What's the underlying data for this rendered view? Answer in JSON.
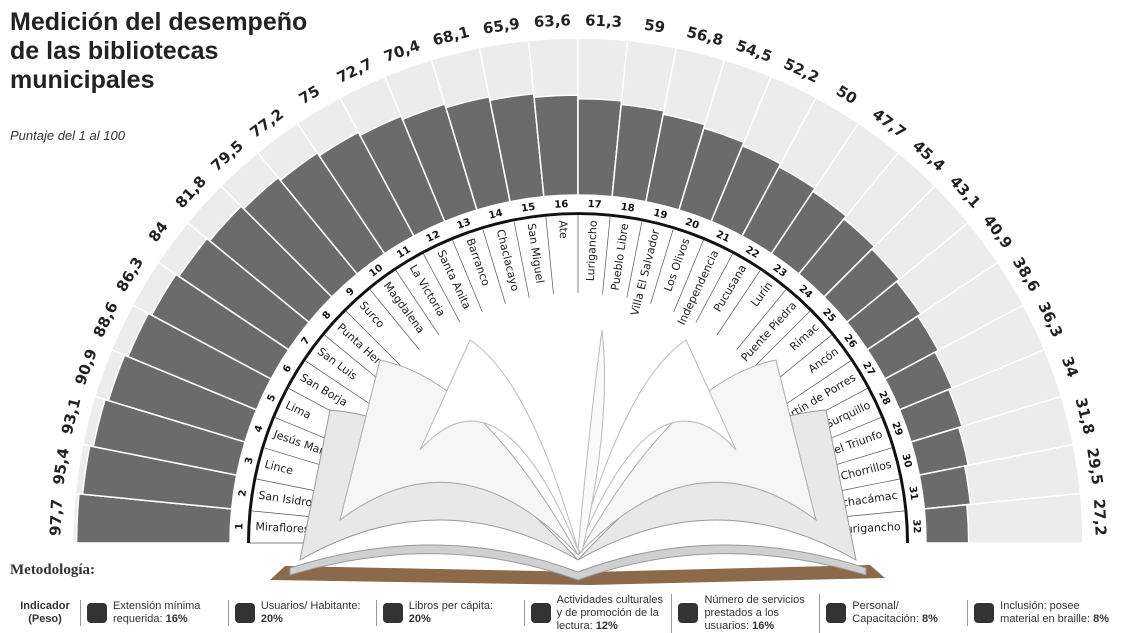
{
  "chart_data": {
    "type": "radial-bar",
    "title": "Medición del desempeño de las bibliotecas municipales",
    "subtitle": "Puntaje del 1 al 100",
    "categories": [
      "Miraflores",
      "San Isidro",
      "Lince",
      "Jesús María",
      "Lima",
      "San Borja",
      "San Luis",
      "Punta Hermosa",
      "Surco",
      "Magdalena",
      "La Victoria",
      "Santa Anita",
      "Barranco",
      "Chaclacayo",
      "San Miguel",
      "Ate",
      "Lurigancho",
      "Pueblo Libre",
      "Villa El Salvador",
      "Los Olivos",
      "Independencia",
      "Pucusana",
      "Lurín",
      "Puente Piedra",
      "Rímac",
      "Ancón",
      "San Martín de Porres",
      "Surquillo",
      "Villa María del Triunfo",
      "Chorrillos",
      "Pachacámac",
      "S. J. de Lurigancho"
    ],
    "ranks": [
      1,
      2,
      3,
      4,
      5,
      6,
      7,
      8,
      9,
      10,
      11,
      12,
      13,
      14,
      15,
      16,
      17,
      18,
      19,
      20,
      21,
      22,
      23,
      24,
      25,
      26,
      27,
      28,
      29,
      30,
      31,
      32
    ],
    "values": [
      97.7,
      95.4,
      93.1,
      90.9,
      88.6,
      86.3,
      84,
      81.8,
      79.5,
      77.2,
      75,
      72.7,
      70.4,
      68.1,
      65.9,
      63.6,
      61.3,
      59,
      56.8,
      54.5,
      52.2,
      50,
      47.7,
      45.4,
      43.1,
      40.9,
      38.6,
      36.3,
      34,
      31.8,
      29.5,
      27.2
    ],
    "value_labels": [
      "97,7",
      "95,4",
      "93,1",
      "90,9",
      "88,6",
      "86,3",
      "84",
      "81,8",
      "79,5",
      "77,2",
      "75",
      "72,7",
      "70,4",
      "68,1",
      "65,9",
      "63,6",
      "61,3",
      "59",
      "56,8",
      "54,5",
      "52,2",
      "50",
      "47,7",
      "45,4",
      "43,1",
      "40,9",
      "38,6",
      "36,3",
      "34",
      "31,8",
      "29,5",
      "27,2"
    ],
    "color": "#6b6b6b",
    "ylim": [
      0,
      100
    ]
  },
  "methodology": {
    "title": "Metodología:",
    "indicator_label": "Indicador (Peso)",
    "items": [
      {
        "label": "Extensión mínima requerida:",
        "weight": "16%"
      },
      {
        "label": "Usuarios/ Habitante:",
        "weight": "20%"
      },
      {
        "label": "Libros per cápita:",
        "weight": "20%"
      },
      {
        "label": "Actividades culturales y de promoción de la lectura:",
        "weight": "12%"
      },
      {
        "label": "Número de servicios prestados a los usuarios:",
        "weight": "16%"
      },
      {
        "label": "Personal/ Capacitación:",
        "weight": "8%"
      },
      {
        "label": "Inclusión: posee material en braille:",
        "weight": "8%"
      }
    ]
  }
}
